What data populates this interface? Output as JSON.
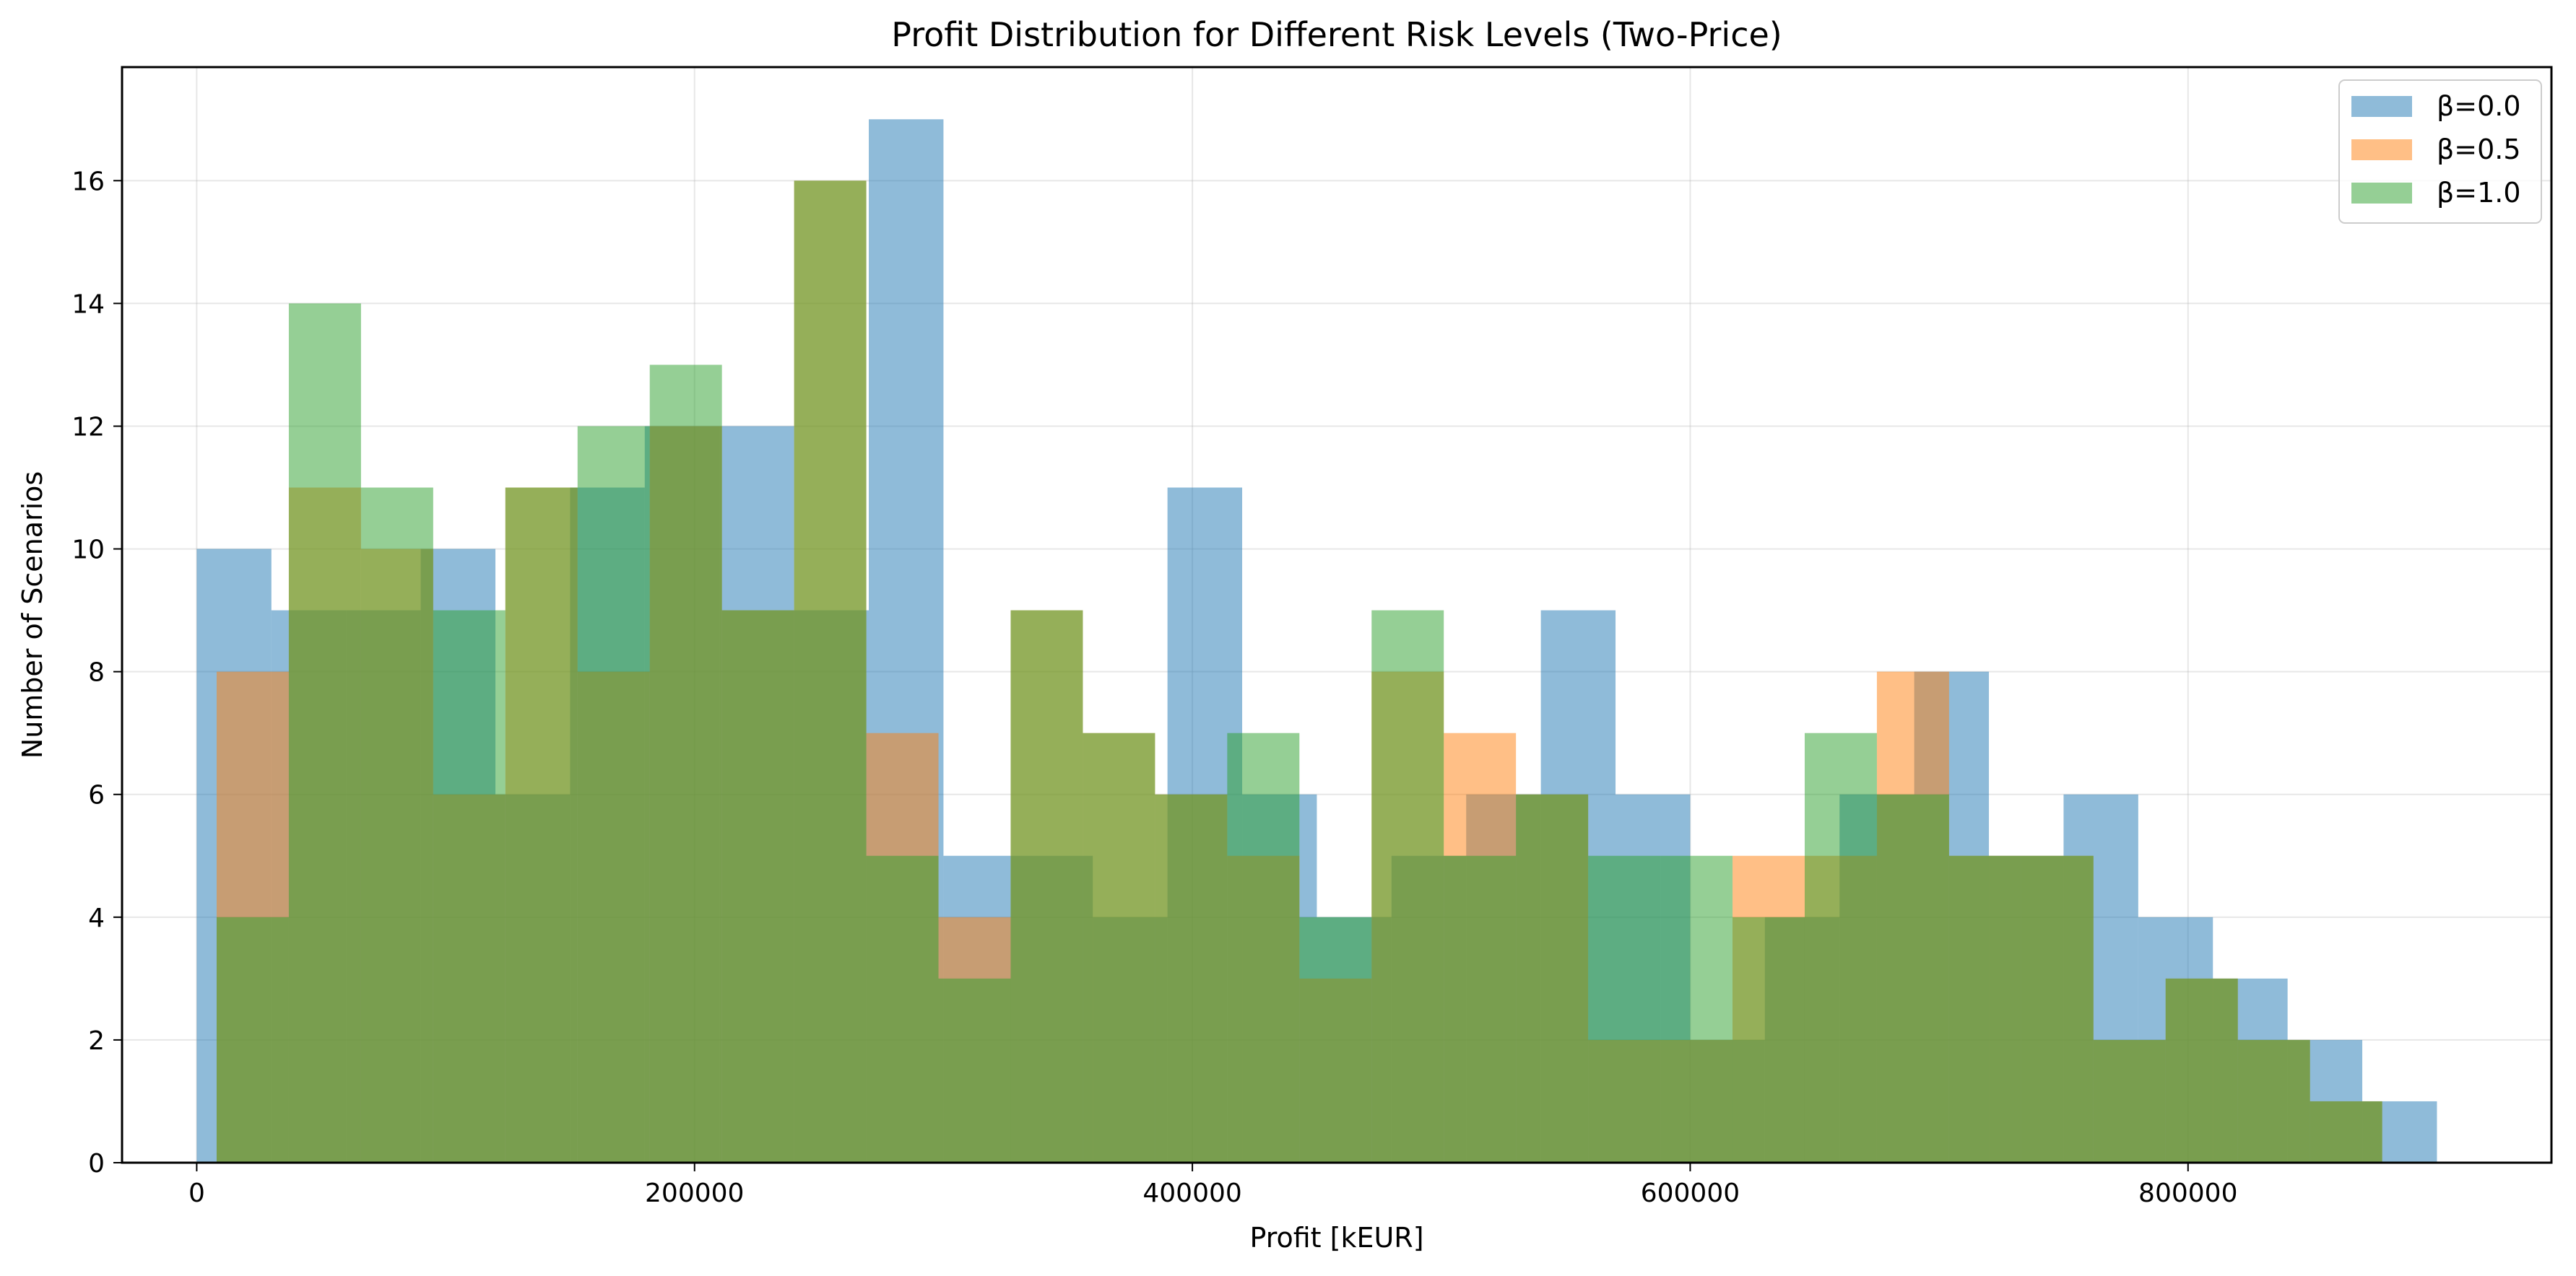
{
  "chart_data": {
    "type": "bar",
    "title": "Profit Distribution for Different Risk Levels (Two-Price)",
    "xlabel": "Profit [kEUR]",
    "ylabel": "Number of Scenarios",
    "xlim": [
      -30000,
      946000
    ],
    "ylim": [
      0,
      17.85
    ],
    "x_ticks": [
      0,
      200000,
      400000,
      600000,
      800000
    ],
    "x_tick_labels": [
      "0",
      "200000",
      "400000",
      "600000",
      "800000"
    ],
    "y_ticks": [
      0,
      2,
      4,
      6,
      8,
      10,
      12,
      14,
      16
    ],
    "y_tick_labels": [
      "0",
      "2",
      "4",
      "6",
      "8",
      "10",
      "12",
      "14",
      "16"
    ],
    "grid": true,
    "legend_position": "top-right",
    "colors": {
      "beta_0_0": "#1f77b4",
      "beta_0_5": "#ff7f0e",
      "beta_1_0": "#2ca02c"
    },
    "series": [
      {
        "name": "β=0.0",
        "bin_edges": [
          0,
          30000,
          60000,
          90000,
          120000,
          150000,
          180000,
          210000,
          240000,
          270000,
          300000,
          330000,
          360000,
          390000,
          420000,
          450000,
          480000,
          510000,
          540000,
          570000,
          600000,
          630000,
          660000,
          690000,
          720000,
          750000,
          780000,
          810000,
          840000,
          870000,
          900000
        ],
        "counts": [
          10,
          9,
          9,
          10,
          6,
          11,
          12,
          12,
          9,
          17,
          5,
          5,
          4,
          11,
          6,
          4,
          5,
          6,
          9,
          6,
          2,
          4,
          6,
          8,
          5,
          6,
          4,
          3,
          2,
          1
        ]
      },
      {
        "name": "β=0.5",
        "bin_edges": [
          8000,
          37000,
          66000,
          95000,
          124000,
          153000,
          182000,
          211000,
          240000,
          269000,
          298000,
          327000,
          356000,
          385000,
          414000,
          443000,
          472000,
          501000,
          530000,
          559000,
          588000,
          617000,
          646000,
          675000,
          704000,
          733000,
          762000,
          791000,
          820000,
          849000,
          878000
        ],
        "counts": [
          8,
          11,
          10,
          6,
          11,
          8,
          12,
          9,
          16,
          7,
          4,
          9,
          7,
          6,
          5,
          3,
          8,
          7,
          6,
          2,
          2,
          5,
          5,
          8,
          5,
          5,
          2,
          3,
          2,
          1
        ]
      },
      {
        "name": "β=1.0",
        "bin_edges": [
          8000,
          37000,
          66000,
          95000,
          124000,
          153000,
          182000,
          211000,
          240000,
          269000,
          298000,
          327000,
          356000,
          385000,
          414000,
          443000,
          472000,
          501000,
          530000,
          559000,
          588000,
          617000,
          646000,
          675000,
          704000,
          733000,
          762000,
          791000,
          820000,
          849000,
          878000
        ],
        "counts": [
          4,
          14,
          11,
          9,
          11,
          12,
          13,
          9,
          16,
          5,
          3,
          9,
          7,
          6,
          7,
          4,
          9,
          5,
          6,
          5,
          5,
          4,
          7,
          6,
          5,
          5,
          2,
          3,
          2,
          1
        ]
      }
    ]
  }
}
